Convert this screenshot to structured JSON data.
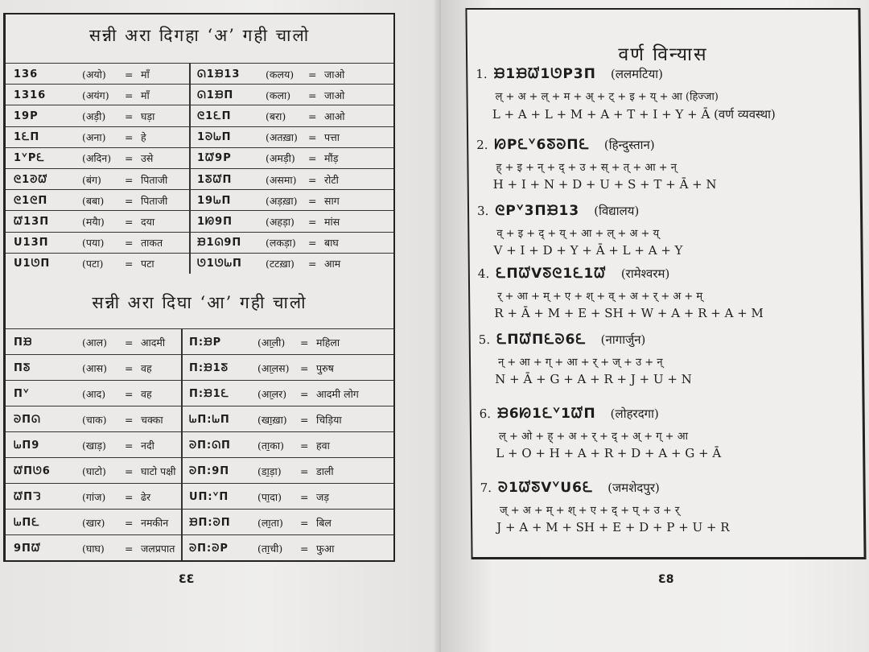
{
  "left_page": {
    "section1": {
      "title": "सन्नी अरा दिगहा ‘अ’ गही चालो",
      "rows": [
        {
          "a": {
            "script": "136",
            "hindi": "(अयो)",
            "eq": "=",
            "meaning": "माँ"
          },
          "b": {
            "script": "ᘏ1ᙖ13",
            "hindi": "(कलय)",
            "eq": "=",
            "meaning": "जाओ"
          }
        },
        {
          "a": {
            "script": "1316",
            "hindi": "(अयंग)",
            "eq": "=",
            "meaning": "माँ"
          },
          "b": {
            "script": "ᘏ1ᙖП",
            "hindi": "(कला)",
            "eq": "=",
            "meaning": "जाओ"
          }
        },
        {
          "a": {
            "script": "19P",
            "hindi": "(अड़ी)",
            "eq": "=",
            "meaning": "घड़ा"
          },
          "b": {
            "script": "ᘓ1ᘍП",
            "hindi": "(बरा)",
            "eq": "=",
            "meaning": "आओ"
          }
        },
        {
          "a": {
            "script": "1ᘍП",
            "hindi": "(अना)",
            "eq": "=",
            "meaning": "हे"
          },
          "b": {
            "script": "1ᘐᘈП",
            "hindi": "(अतख़ा)",
            "eq": "=",
            "meaning": "पत्ता"
          }
        },
        {
          "a": {
            "script": "1ᘁPᘍ",
            "hindi": "(अदिन)",
            "eq": "=",
            "meaning": "उसे"
          },
          "b": {
            "script": "1ᘺ9P",
            "hindi": "(अमड़ी)",
            "eq": "=",
            "meaning": "मौंड़"
          }
        },
        {
          "a": {
            "script": "ᘓ1ᘑᘺ",
            "hindi": "(बंग)",
            "eq": "=",
            "meaning": "पिताजी"
          },
          "b": {
            "script": "1ᘕᘺП",
            "hindi": "(असमा)",
            "eq": "=",
            "meaning": "रोटी"
          }
        },
        {
          "a": {
            "script": "ᘓ1ᘓП",
            "hindi": "(बबा)",
            "eq": "=",
            "meaning": "पिताजी"
          },
          "b": {
            "script": "19ᘈП",
            "hindi": "(अड़ख़ा)",
            "eq": "=",
            "meaning": "साग"
          }
        },
        {
          "a": {
            "script": "ᘺ13П",
            "hindi": "(मयैा)",
            "eq": "=",
            "meaning": "दया"
          },
          "b": {
            "script": "1ᘗ9П",
            "hindi": "(अहड़ा)",
            "eq": "=",
            "meaning": "मांस"
          }
        },
        {
          "a": {
            "script": "U13П",
            "hindi": "(पया)",
            "eq": "=",
            "meaning": "ताकत"
          },
          "b": {
            "script": "ᙖ1ᘏ9П",
            "hindi": "(लकड़ा)",
            "eq": "=",
            "meaning": "बाघ"
          }
        },
        {
          "a": {
            "script": "U1ᘎП",
            "hindi": "(पटा)",
            "eq": "=",
            "meaning": "पटा"
          },
          "b": {
            "script": "ᘎ1ᘎᘈП",
            "hindi": "(टटख़ा)",
            "eq": "=",
            "meaning": "आम"
          }
        }
      ]
    },
    "section2": {
      "title": "सन्नी अरा दिघा ‘आ’ गही चालो",
      "rows": [
        {
          "a": {
            "script": "Пᙖ",
            "hindi": "(आल)",
            "eq": "=",
            "meaning": "आदमी"
          },
          "b": {
            "script": "П:ᙖP",
            "hindi": "(आ̱ली)",
            "eq": "=",
            "meaning": "महिला"
          }
        },
        {
          "a": {
            "script": "Пᘕ",
            "hindi": "(आस)",
            "eq": "=",
            "meaning": "वह"
          },
          "b": {
            "script": "П:ᙖ1ᘕ",
            "hindi": "(आ̱लस)",
            "eq": "=",
            "meaning": "पुरुष"
          }
        },
        {
          "a": {
            "script": "Пᘁ",
            "hindi": "(आद)",
            "eq": "=",
            "meaning": "वह"
          },
          "b": {
            "script": "П:ᙖ1ᘍ",
            "hindi": "(आ̱लर)",
            "eq": "=",
            "meaning": "आदमी लोग"
          }
        },
        {
          "a": {
            "script": "ᘐПᘏ",
            "hindi": "(चाक)",
            "eq": "=",
            "meaning": "चक्का"
          },
          "b": {
            "script": "ᘈП:ᘈП",
            "hindi": "(खा̱ख़ा)",
            "eq": "=",
            "meaning": "चिड़िया"
          }
        },
        {
          "a": {
            "script": "ᘈП9",
            "hindi": "(खाड़)",
            "eq": "=",
            "meaning": "नदी"
          },
          "b": {
            "script": "ᘐП:ᘏП",
            "hindi": "(ता̱का)",
            "eq": "=",
            "meaning": "हवा"
          }
        },
        {
          "a": {
            "script": "ᘺПᘎ6",
            "hindi": "(घाटो)",
            "eq": "=",
            "meaning": "घाटो पक्षी"
          },
          "b": {
            "script": "ᘐП:9П",
            "hindi": "(डा̱ड़ा)",
            "eq": "=",
            "meaning": "डाली"
          }
        },
        {
          "a": {
            "script": "ᘺПᘊ",
            "hindi": "(गांज)",
            "eq": "=",
            "meaning": "ढेर"
          },
          "b": {
            "script": "UП:ᘁП",
            "hindi": "(पा̱दा)",
            "eq": "=",
            "meaning": "जड़"
          }
        },
        {
          "a": {
            "script": "ᘈПᘍ",
            "hindi": "(खार)",
            "eq": "=",
            "meaning": "नमकीन"
          },
          "b": {
            "script": "ᙖП:ᘐП",
            "hindi": "(ला̱ता)",
            "eq": "=",
            "meaning": "बिल"
          }
        },
        {
          "a": {
            "script": "9Пᘺ",
            "hindi": "(घाघ)",
            "eq": "=",
            "meaning": "जलप्रपात"
          },
          "b": {
            "script": "ᘐП:ᘐP",
            "hindi": "(ता̱ची)",
            "eq": "=",
            "meaning": "फुआ"
          }
        }
      ]
    },
    "page_number": "ƐƐ"
  },
  "right_page": {
    "title": "वर्ण विन्यास",
    "entries": [
      {
        "num": "1.",
        "script": "ᙖ1ᙖᘺ1ᘎP3П",
        "hindi": "(ललमटिया)",
        "devanagari": "ल् + अ + ल् + म + अ् + ट् + इ + य् + आ (हिज्जा)",
        "latin": "L + A + L + M + A + T + I + Y + Ā (वर्ण व्यवस्था)"
      },
      {
        "num": "2.",
        "script": "ᘗPᘍᘁ6ᘕᘐПᘍ",
        "hindi": "(हिन्दुस्तान)",
        "devanagari": "ह् + इ + न् + द् + उ + स् + त् + आ + न्",
        "latin": "H + I + N + D + U + S + T + Ā + N"
      },
      {
        "num": "3.",
        "script": "ᘓPᘁ3Пᙖ13",
        "hindi": "(विद्यालय)",
        "devanagari": "व् + इ + द् + य् + आ + ल् + अ + य्",
        "latin": "V + I + D + Y + Ā + L + A + Y"
      },
      {
        "num": "4.",
        "script": "ᘍПᘺVᘕᘓ1ᘍ1ᘺ",
        "hindi": "(रामेश्वरम)",
        "devanagari": "र् + आ + म् + ए + श् + व् + अ + र् + अ + म्",
        "latin": "R + Ā + M + E + SH + W + A + R + A + M"
      },
      {
        "num": "5.",
        "script": "ᘍПᘺПᘍᘐ6ᘍ",
        "hindi": "(नागार्जुन)",
        "devanagari": "न् + आ + ग् + आ + र् + ज् + उ + न्",
        "latin": "N + Ā + G + A + R + J + U + N"
      },
      {
        "num": "6.",
        "script": "ᙖ6ᘗ1ᘍᘁ1ᘺП",
        "hindi": "(लोहरदगा)",
        "devanagari": "ल् + ओ + ह् + अ + र् + द् + अ् + ग् + आ",
        "latin": "L + O + H + A + R + D + A + G + Ā"
      },
      {
        "num": "7.",
        "script": "ᘐ1ᘺᘕVᘁU6ᘍ",
        "hindi": "(जमशेदपुर)",
        "devanagari": "ज् + अ + म् + श् + ए + द् + प् + उ + र्",
        "latin": "J + A + M + SH + E + D + P + U + R"
      }
    ],
    "page_number": "Ɛ8"
  }
}
